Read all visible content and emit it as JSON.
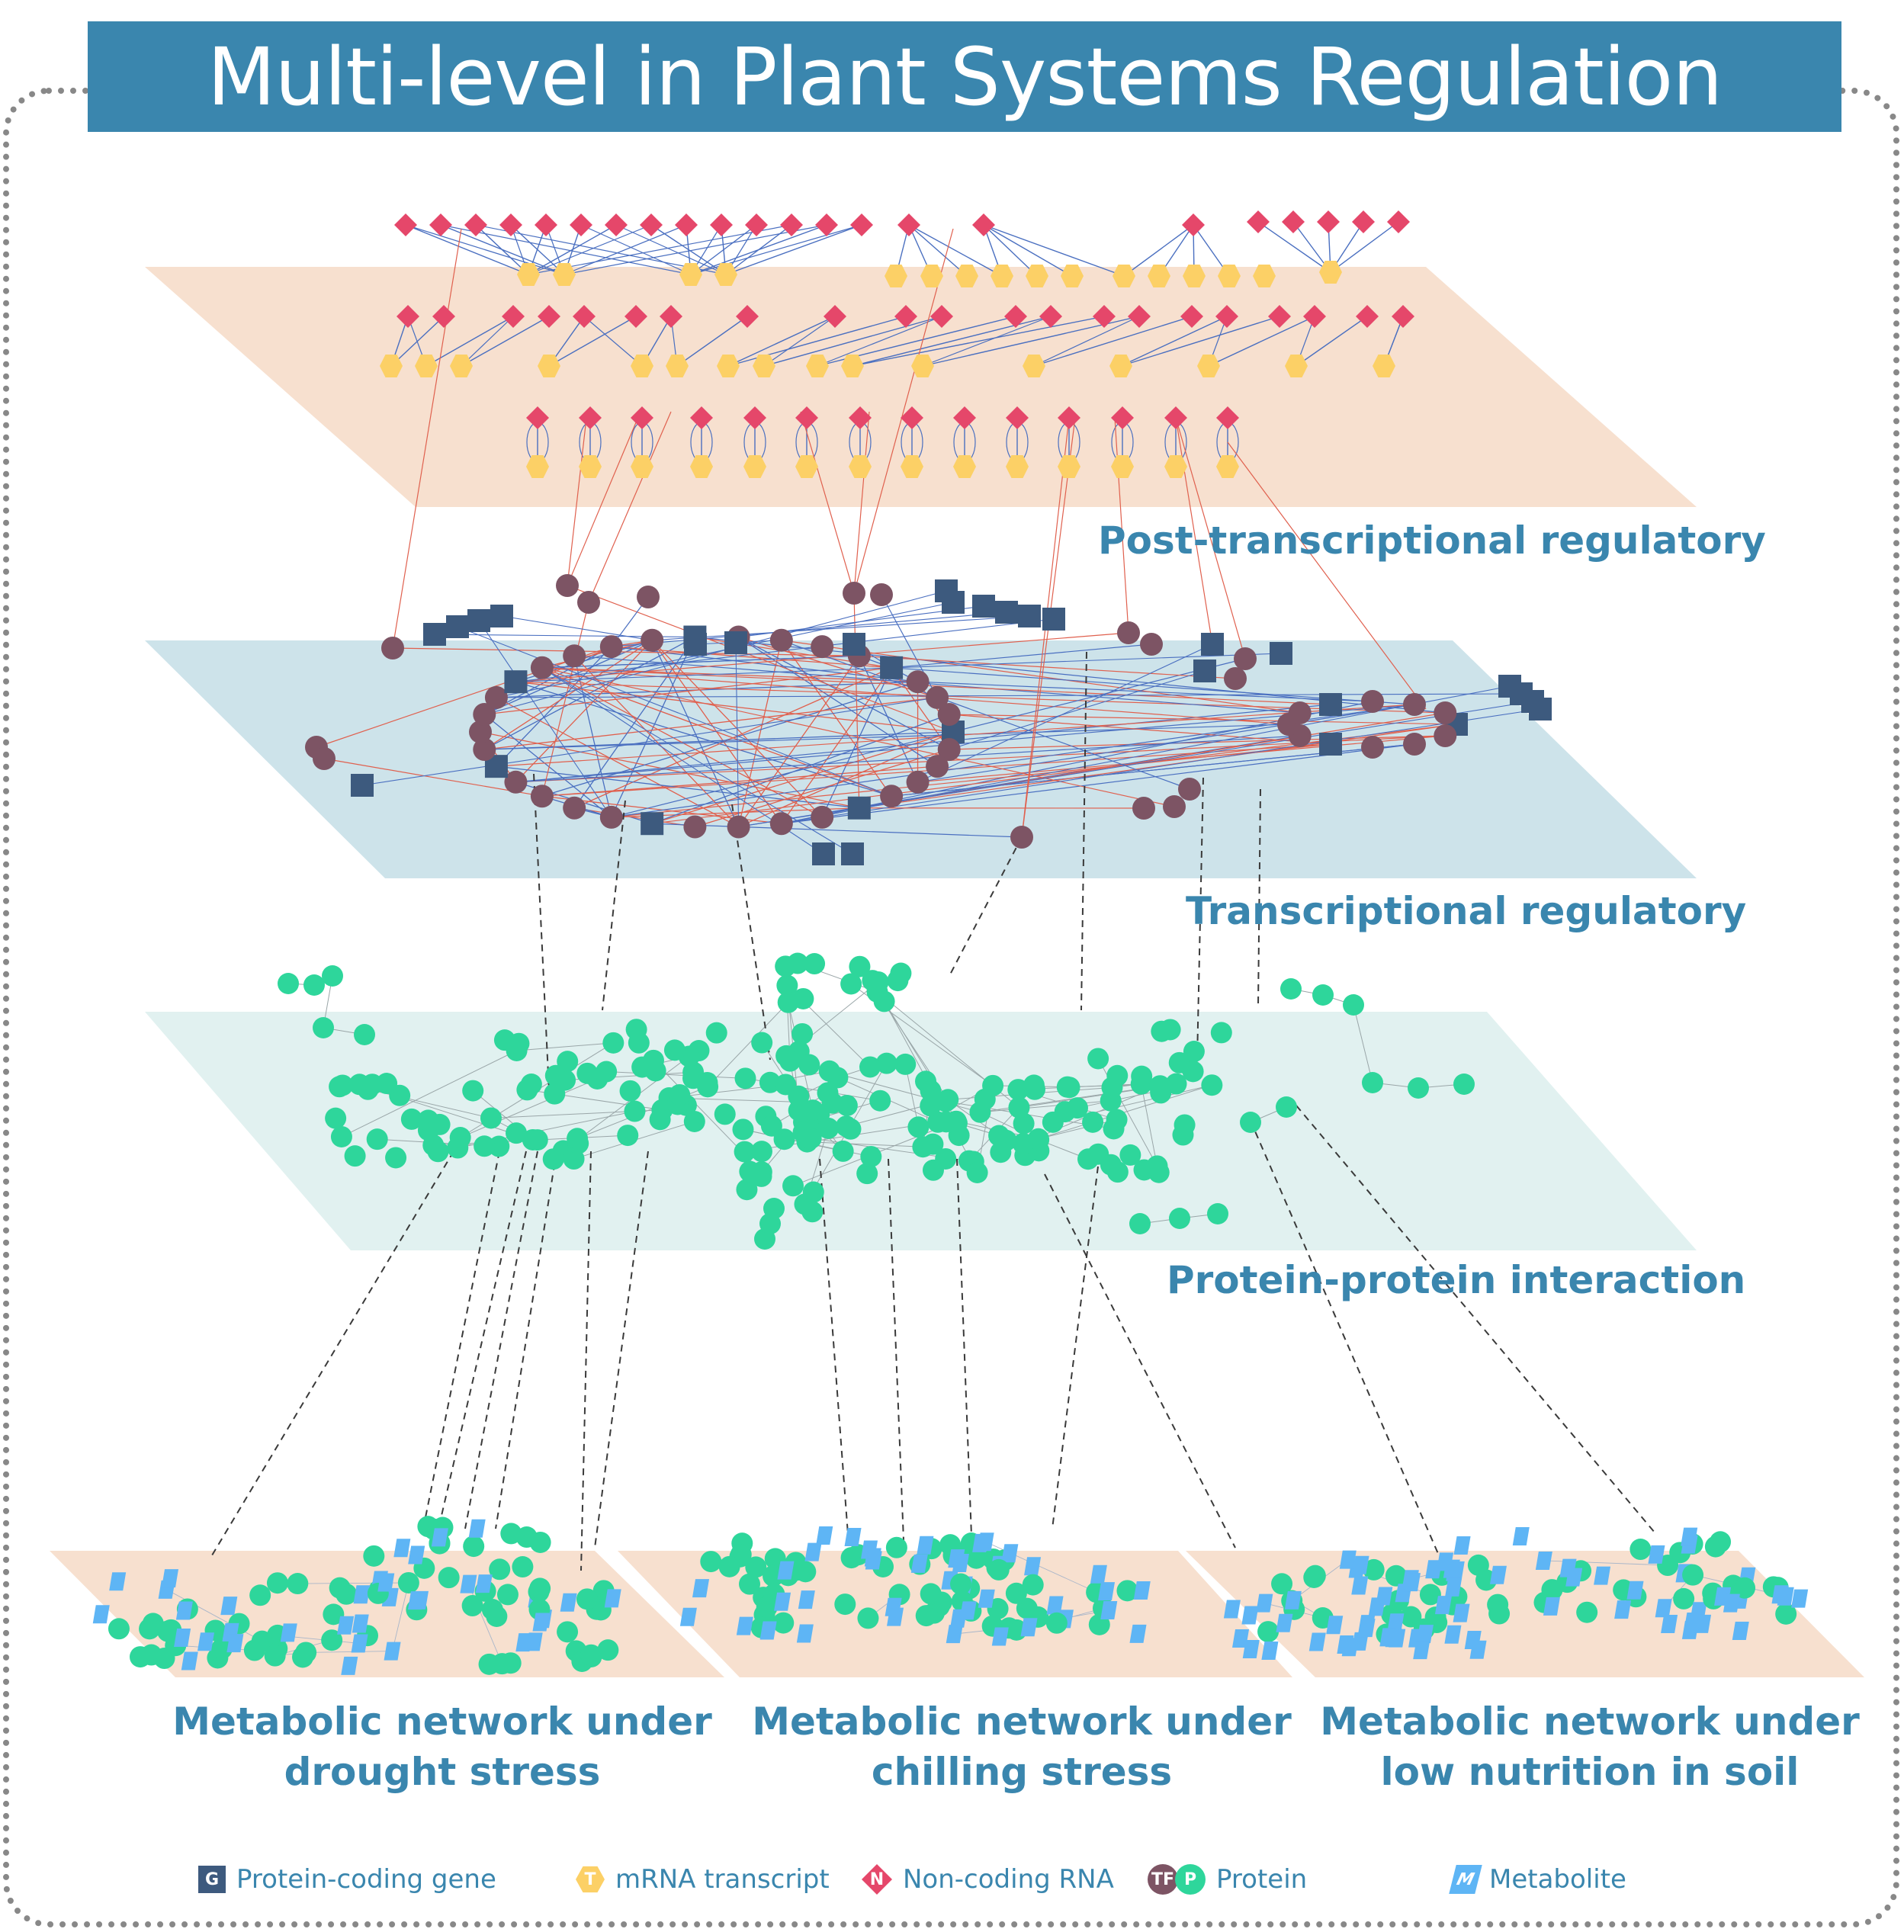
{
  "title": "Multi-level in Plant Systems Regulation",
  "layers": {
    "post_transcriptional": "Post-transcriptional regulatory",
    "transcriptional": "Transcriptional regulatory",
    "ppi": "Protein-protein interaction"
  },
  "metabolic": {
    "drought": "Metabolic network under drought stress",
    "chilling": "Metabolic network under chilling stress",
    "low_nutrition": "Metabolic network under low nutrition in soil"
  },
  "legend": {
    "gene": {
      "label": "Protein-coding gene",
      "glyph": "G"
    },
    "mrna": {
      "label": "mRNA transcript",
      "glyph": "T"
    },
    "ncrna": {
      "label": "Non-coding RNA",
      "glyph": "N"
    },
    "protein": {
      "label": "Protein",
      "glyph_tf": "TF",
      "glyph_p": "P"
    },
    "metabolite": {
      "label": "Metabolite",
      "glyph": "M"
    }
  },
  "colors": {
    "title_bar": "#3a86ae",
    "plane_peach": "#f7e0cf",
    "plane_blue": "#cde3ea",
    "plane_light": "#e1f1f0",
    "ncrna": "#e5476a",
    "mrna": "#fcd066",
    "gene": "#3d5a7e",
    "tf": "#7d5464",
    "protein": "#2ed69b",
    "metabolite": "#5eb5f5",
    "edge_red": "#e0604e",
    "edge_blue": "#4a6fc0"
  }
}
